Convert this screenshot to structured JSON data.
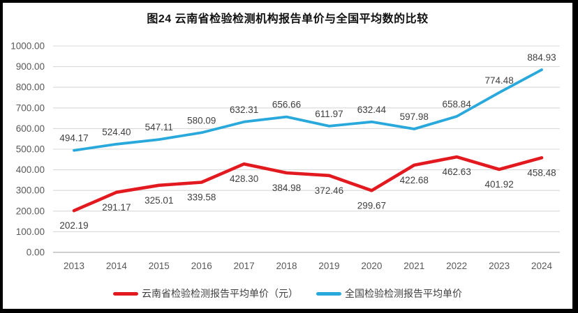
{
  "title": "图24 云南省检验检测机构报告单价与全国平均数的比较",
  "chart_data": {
    "type": "line",
    "x": [
      "2013",
      "2014",
      "2015",
      "2016",
      "2017",
      "2018",
      "2019",
      "2020",
      "2021",
      "2022",
      "2023",
      "2024"
    ],
    "series": [
      {
        "name": "云南省检验检测报告平均单价（元）",
        "color": "#e21a1f",
        "values": [
          202.19,
          291.17,
          325.01,
          339.58,
          428.3,
          384.98,
          372.46,
          299.67,
          422.68,
          462.63,
          401.92,
          458.48
        ],
        "label_position": "below"
      },
      {
        "name": "全国检验检测报告平均单价",
        "color": "#29a8dc",
        "values": [
          494.17,
          524.4,
          547.11,
          580.09,
          632.31,
          656.66,
          611.97,
          632.44,
          597.98,
          658.84,
          774.48,
          884.93
        ],
        "label_position": "above"
      }
    ],
    "ylim": [
      0,
      1000
    ],
    "ytick_step": 100,
    "yticks": [
      "0.00",
      "100.00",
      "200.00",
      "300.00",
      "400.00",
      "500.00",
      "600.00",
      "700.00",
      "800.00",
      "900.00",
      "1000.00"
    ],
    "xlabel": "",
    "ylabel": "",
    "grid": true,
    "legend_position": "bottom",
    "colors": {
      "gridline": "#d9d9d9",
      "axis_line": "#bfbfbf",
      "tick_text": "#595959",
      "data_label_text": "#3f3f3f"
    }
  }
}
